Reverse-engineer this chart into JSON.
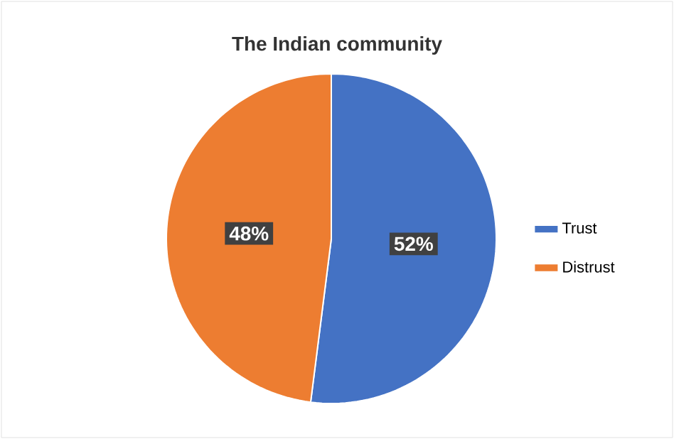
{
  "chart_data": {
    "type": "pie",
    "title": "The Indian community",
    "categories": [
      "Trust",
      "Distrust"
    ],
    "values": [
      52,
      48
    ],
    "colors": [
      "#4472c4",
      "#ed7d31"
    ],
    "value_labels": [
      "52%",
      "48%"
    ],
    "legend": "right"
  }
}
